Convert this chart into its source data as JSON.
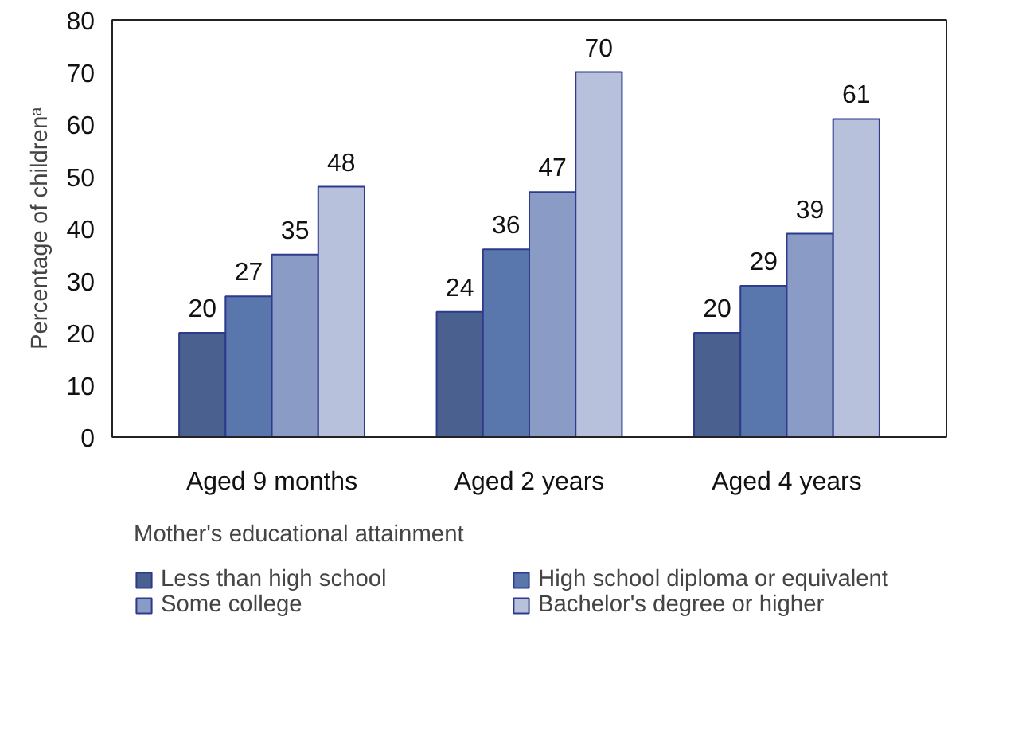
{
  "chart_data": {
    "type": "bar",
    "ylabel": "Percentage of childrenᵃ",
    "legend_title": "Mother's educational attainment",
    "categories": [
      "Aged 9 months",
      "Aged 2 years",
      "Aged 4 years"
    ],
    "series": [
      {
        "name": "Less than high school",
        "color": "#4a6190",
        "values": [
          20,
          24,
          20
        ]
      },
      {
        "name": "High school diploma or equivalent",
        "color": "#5a77ad",
        "values": [
          27,
          36,
          29
        ]
      },
      {
        "name": "Some college",
        "color": "#8a9bc6",
        "values": [
          35,
          47,
          39
        ]
      },
      {
        "name": "Bachelor's degree or higher",
        "color": "#b7c1dc",
        "values": [
          48,
          70,
          61
        ]
      }
    ],
    "ylim": [
      0,
      80
    ],
    "yticks": [
      0,
      10,
      20,
      30,
      40,
      50,
      60,
      70,
      80
    ],
    "data_labels": true,
    "grid": false,
    "legend": "bottom"
  }
}
